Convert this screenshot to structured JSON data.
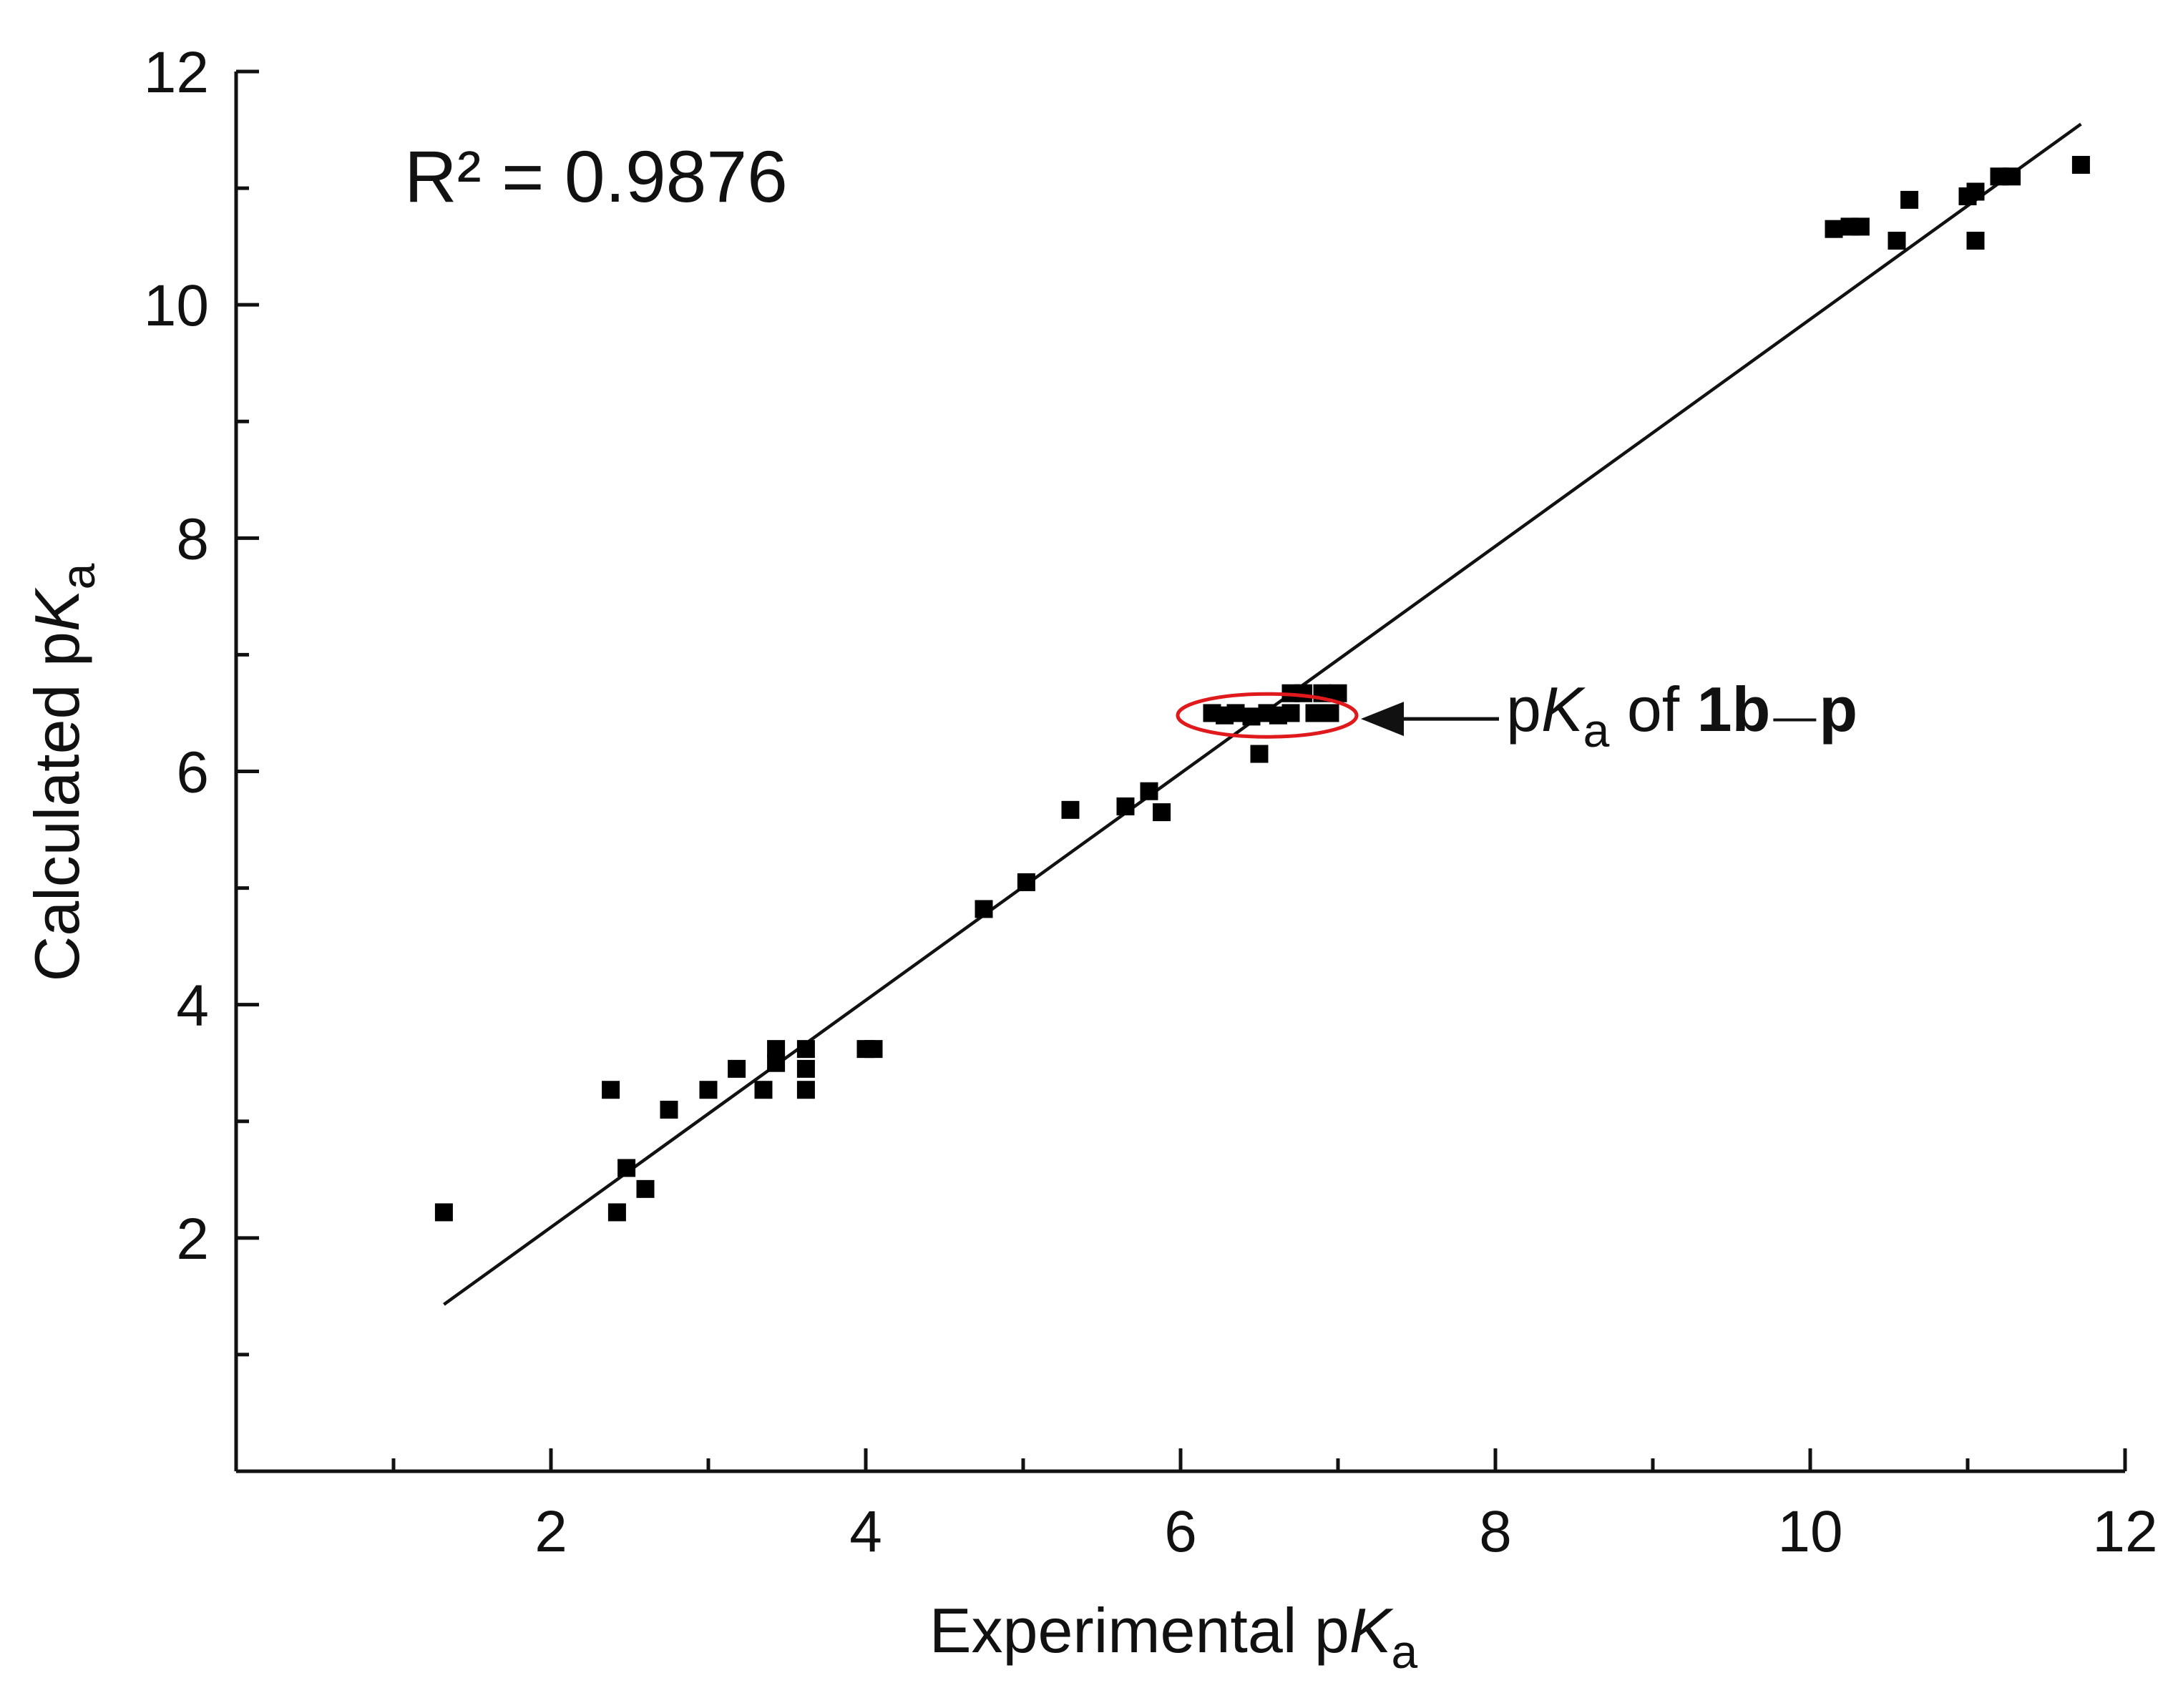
{
  "chart_data": {
    "type": "scatter",
    "title": "",
    "xlabel": {
      "main": "Experimental p",
      "italic": "K",
      "sub": "a"
    },
    "ylabel": {
      "main": "Calculated p",
      "italic": "K",
      "sub": "a"
    },
    "xlim": [
      0,
      12
    ],
    "ylim": [
      0,
      12
    ],
    "x_ticks": [
      2,
      4,
      6,
      8,
      10,
      12
    ],
    "y_ticks": [
      2,
      4,
      6,
      8,
      10,
      12
    ],
    "x_tick_labels": [
      "2",
      "4",
      "6",
      "8",
      "10",
      "12"
    ],
    "y_tick_labels": [
      "2",
      "4",
      "6",
      "8",
      "10",
      "12"
    ],
    "minor_ticks": [
      1,
      3,
      5,
      7,
      9,
      11
    ],
    "grid": false,
    "r2_label": "R² = 0.9876",
    "fit_line": {
      "x": [
        1.32,
        11.72
      ],
      "y": [
        1.43,
        11.55
      ]
    },
    "annotation": {
      "prefix": "p",
      "italic": "K",
      "sub": "a",
      "middle": " of ",
      "bold": "1b",
      "end": "p",
      "ellipse_center": [
        6.55,
        6.48
      ],
      "arrow_target": [
        7.1,
        6.45
      ]
    },
    "series": [
      {
        "name": "data",
        "points": [
          [
            1.32,
            2.22
          ],
          [
            2.38,
            3.27
          ],
          [
            2.42,
            2.22
          ],
          [
            2.48,
            2.6
          ],
          [
            2.6,
            2.42
          ],
          [
            2.75,
            3.1
          ],
          [
            3.0,
            3.27
          ],
          [
            3.18,
            3.45
          ],
          [
            3.35,
            3.27
          ],
          [
            3.43,
            3.5
          ],
          [
            3.43,
            3.62
          ],
          [
            3.62,
            3.62
          ],
          [
            3.62,
            3.45
          ],
          [
            3.62,
            3.27
          ],
          [
            4.0,
            3.62
          ],
          [
            4.05,
            3.62
          ],
          [
            4.75,
            4.82
          ],
          [
            5.02,
            5.05
          ],
          [
            5.3,
            5.67
          ],
          [
            5.65,
            5.7
          ],
          [
            5.8,
            5.83
          ],
          [
            5.88,
            5.65
          ],
          [
            6.2,
            6.5
          ],
          [
            6.28,
            6.48
          ],
          [
            6.35,
            6.5
          ],
          [
            6.45,
            6.47
          ],
          [
            6.5,
            6.15
          ],
          [
            6.55,
            6.5
          ],
          [
            6.62,
            6.48
          ],
          [
            6.7,
            6.5
          ],
          [
            6.7,
            6.67
          ],
          [
            6.78,
            6.67
          ],
          [
            6.85,
            6.5
          ],
          [
            6.9,
            6.67
          ],
          [
            6.95,
            6.5
          ],
          [
            7.0,
            6.67
          ],
          [
            10.15,
            10.65
          ],
          [
            10.25,
            10.67
          ],
          [
            10.32,
            10.67
          ],
          [
            10.55,
            10.55
          ],
          [
            10.63,
            10.9
          ],
          [
            11.0,
            10.93
          ],
          [
            11.05,
            10.97
          ],
          [
            11.05,
            10.55
          ],
          [
            11.2,
            11.1
          ],
          [
            11.28,
            11.1
          ],
          [
            11.72,
            11.2
          ]
        ]
      }
    ]
  }
}
